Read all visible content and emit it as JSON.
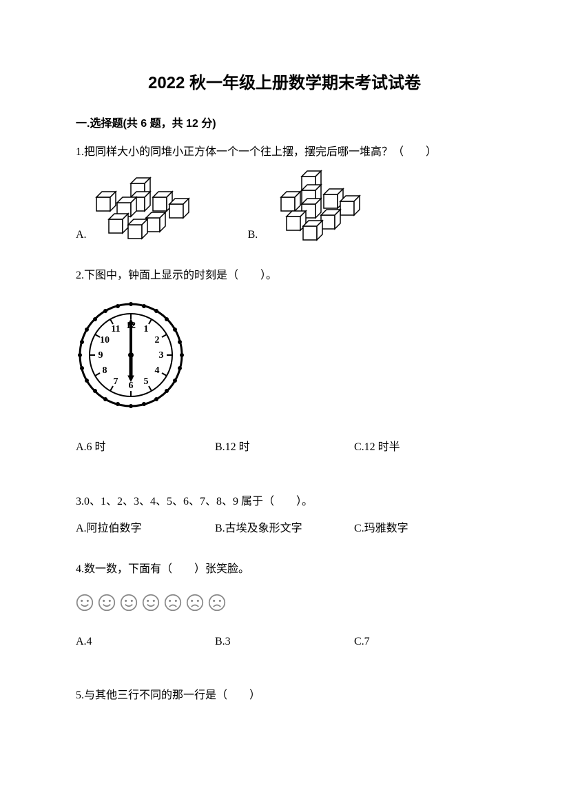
{
  "title": "2022 秋一年级上册数学期末考试试卷",
  "section1": {
    "heading": "一.选择题(共 6 题，共 12 分)",
    "q1": {
      "text": "1.把同样大小的同堆小正方体一个一个往上摆，摆完后哪一堆高？（　　）",
      "optA": "A.",
      "optB": "B."
    },
    "q2": {
      "text": "2.下图中，钟面上显示的时刻是（　　）。",
      "optA": "A.6 时",
      "optB": "B.12 时",
      "optC": "C.12 时半"
    },
    "q3": {
      "text": "3.0、1、2、3、4、5、6、7、8、9 属于（　　）。",
      "optA": "A.阿拉伯数字",
      "optB": "B.古埃及象形文字",
      "optC": "C.玛雅数字"
    },
    "q4": {
      "text": "4.数一数，下面有（　　）张笑脸。",
      "faces": [
        {
          "type": "smile"
        },
        {
          "type": "smile"
        },
        {
          "type": "smile"
        },
        {
          "type": "smile"
        },
        {
          "type": "frown"
        },
        {
          "type": "frown"
        },
        {
          "type": "frown"
        }
      ],
      "optA": "A.4",
      "optB": "B.3",
      "optC": "C.7"
    },
    "q5": {
      "text": "5.与其他三行不同的那一行是（　　）"
    }
  },
  "clock": {
    "hour_numbers": [
      "12",
      "1",
      "2",
      "3",
      "4",
      "5",
      "6",
      "7",
      "8",
      "9",
      "10",
      "11"
    ],
    "minute_hand_angle": 0,
    "hour_hand_angle": 180,
    "stroke": "#000000",
    "face_fill": "#ffffff"
  },
  "cubes": {
    "stroke": "#000000",
    "optionA": {
      "total_cubes": 8,
      "desc": "8 single cubes scattered"
    },
    "optionB": {
      "total_cubes": 8,
      "desc": "some stacked higher"
    }
  },
  "face_style": {
    "stroke": "#888888",
    "size": 26
  },
  "colors": {
    "text": "#000000",
    "background": "#ffffff"
  }
}
